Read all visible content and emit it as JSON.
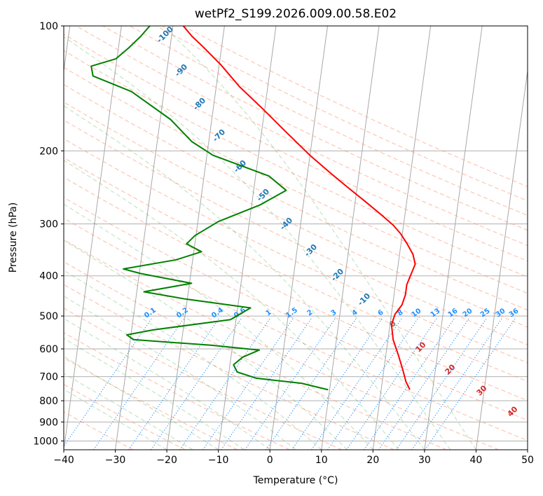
{
  "chart_data": {
    "type": "line",
    "title": "wetPf2_S199.2026.009.00.58.E02",
    "xlabel": "Temperature (°C)",
    "ylabel": "Pressure (hPa)",
    "xlim": [
      -40,
      50
    ],
    "ylim": [
      1050,
      100
    ],
    "x_ticks": [
      "−40",
      "−30",
      "−20",
      "−10",
      "0",
      "10",
      "20",
      "30",
      "40",
      "50"
    ],
    "y_ticks": [
      "100",
      "200",
      "300",
      "400",
      "500",
      "600",
      "700",
      "800",
      "900",
      "1000"
    ],
    "skew": 35,
    "series": [
      {
        "name": "temperature",
        "color": "#ff0000",
        "points": [
          [
            25.5,
            750
          ],
          [
            24.6,
            720
          ],
          [
            23.6,
            670
          ],
          [
            22.4,
            620
          ],
          [
            21.0,
            570
          ],
          [
            20.3,
            525
          ],
          [
            20.7,
            495
          ],
          [
            21.8,
            470
          ],
          [
            22.2,
            445
          ],
          [
            22.2,
            420
          ],
          [
            22.8,
            395
          ],
          [
            23.3,
            375
          ],
          [
            22.6,
            355
          ],
          [
            21.2,
            335
          ],
          [
            19.7,
            317
          ],
          [
            18.0,
            302
          ],
          [
            15.4,
            285
          ],
          [
            11.8,
            264
          ],
          [
            8.2,
            245
          ],
          [
            4.6,
            227
          ],
          [
            0.0,
            205
          ],
          [
            -5.3,
            180
          ],
          [
            -10.5,
            158
          ],
          [
            -15.5,
            140
          ],
          [
            -19.7,
            124
          ],
          [
            -23.7,
            112
          ],
          [
            -26.0,
            106
          ],
          [
            -28.0,
            100
          ]
        ]
      },
      {
        "name": "dewpoint",
        "color": "#008000",
        "points": [
          [
            9.6,
            752
          ],
          [
            4.4,
            726
          ],
          [
            -4.5,
            706
          ],
          [
            -8.4,
            682
          ],
          [
            -9.3,
            655
          ],
          [
            -7.7,
            628
          ],
          [
            -4.7,
            604
          ],
          [
            -14.2,
            588
          ],
          [
            -29.4,
            570
          ],
          [
            -30.8,
            555
          ],
          [
            -25.8,
            540
          ],
          [
            -11.1,
            510
          ],
          [
            -7.5,
            478
          ],
          [
            -20.4,
            455
          ],
          [
            -28.6,
            437
          ],
          [
            -19.6,
            417
          ],
          [
            -29.7,
            395
          ],
          [
            -33.2,
            385
          ],
          [
            -23.2,
            366
          ],
          [
            -18.5,
            350
          ],
          [
            -21.6,
            335
          ],
          [
            -20.2,
            320
          ],
          [
            -16.0,
            296
          ],
          [
            -8.4,
            270
          ],
          [
            -3.7,
            249
          ],
          [
            -7.4,
            230
          ],
          [
            -18.8,
            205
          ],
          [
            -23.3,
            190
          ],
          [
            -28.0,
            168
          ],
          [
            -36.3,
            144
          ],
          [
            -44.2,
            132
          ],
          [
            -44.8,
            125
          ],
          [
            -40.2,
            120
          ],
          [
            -38.0,
            113
          ],
          [
            -36.0,
            106
          ],
          [
            -34.5,
            100
          ]
        ]
      }
    ],
    "dry_adiabat_labels": [
      "-100",
      "-90",
      "-80",
      "-70",
      "-60",
      "-50",
      "-40",
      "-30",
      "-20",
      "-10"
    ],
    "mixing_ratio_labels": [
      "0.1",
      "0.2",
      "0.4",
      "0.6",
      "1",
      "1.5",
      "2",
      "3",
      "4",
      "6",
      "8",
      "10",
      "13",
      "16",
      "20",
      "25",
      "30",
      "36"
    ],
    "moist_adiabat_labels": [
      "0",
      "10",
      "20",
      "30",
      "40"
    ]
  }
}
